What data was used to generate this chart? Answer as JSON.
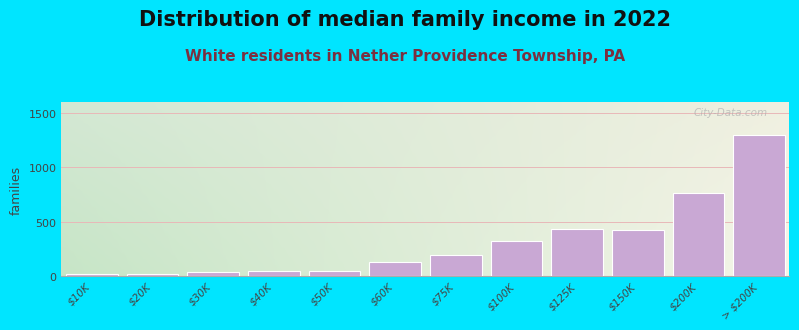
{
  "title": "Distribution of median family income in 2022",
  "subtitle": "White residents in Nether Providence Township, PA",
  "categories": [
    "$10K",
    "$20K",
    "$30K",
    "$40K",
    "$50K",
    "$60K",
    "$75K",
    "$100K",
    "$125K",
    "$150K",
    "$200K",
    "> $200K"
  ],
  "values": [
    15,
    18,
    35,
    45,
    50,
    130,
    195,
    320,
    430,
    420,
    760,
    1300
  ],
  "bar_color": "#c9a8d4",
  "bar_edge_color": "#ffffff",
  "background_color": "#00e5ff",
  "plot_bg_color_topleft": "#d4edda",
  "plot_bg_color_topright": "#f0f0e0",
  "plot_bg_color_bottomleft": "#c8e6c9",
  "plot_bg_color_bottomright": "#f5f5e8",
  "ylabel": "families",
  "ylim": [
    0,
    1600
  ],
  "yticks": [
    0,
    500,
    1000,
    1500
  ],
  "grid_color": "#e8b8b8",
  "title_fontsize": 15,
  "subtitle_fontsize": 11,
  "subtitle_color": "#7a3040",
  "watermark": "City-Data.com"
}
